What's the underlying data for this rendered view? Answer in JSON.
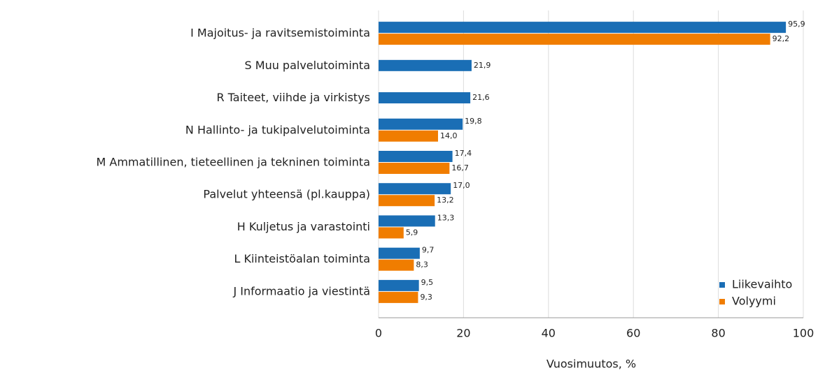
{
  "chart_data": {
    "type": "hbar",
    "x_label": "Vuosimuutos, %",
    "categories": [
      "I Majoitus- ja ravitsemistoiminta",
      "S Muu palvelutoiminta",
      "R Taiteet, viihde ja virkistys",
      "N Hallinto- ja tukipalvelutoiminta",
      "M Ammatillinen, tieteellinen ja tekninen toiminta",
      "Palvelut yhteensä (pl.kauppa)",
      "H Kuljetus ja varastointi",
      "L Kiinteistöalan toiminta",
      "J Informaatio ja viestintä"
    ],
    "series": [
      {
        "name": "Liikevaihto",
        "color": "#1a6eb5",
        "values": [
          95.9,
          21.9,
          21.6,
          19.8,
          17.4,
          17.0,
          13.3,
          9.7,
          9.5
        ],
        "value_labels": [
          "95,9",
          "21,9",
          "21,6",
          "19,8",
          "17,4",
          "17,0",
          "13,3",
          "9,7",
          "9,5"
        ]
      },
      {
        "name": "Volyymi",
        "color": "#f07d00",
        "values": [
          92.2,
          null,
          null,
          14.0,
          16.7,
          13.2,
          5.9,
          8.3,
          9.3
        ],
        "value_labels": [
          "92,2",
          null,
          null,
          "14,0",
          "16,7",
          "13,2",
          "5,9",
          "8,3",
          "9,3"
        ]
      }
    ],
    "xlim": [
      0,
      100
    ],
    "xticks": [
      0,
      20,
      40,
      60,
      80,
      100
    ],
    "grid": true,
    "legend": "lower right"
  }
}
